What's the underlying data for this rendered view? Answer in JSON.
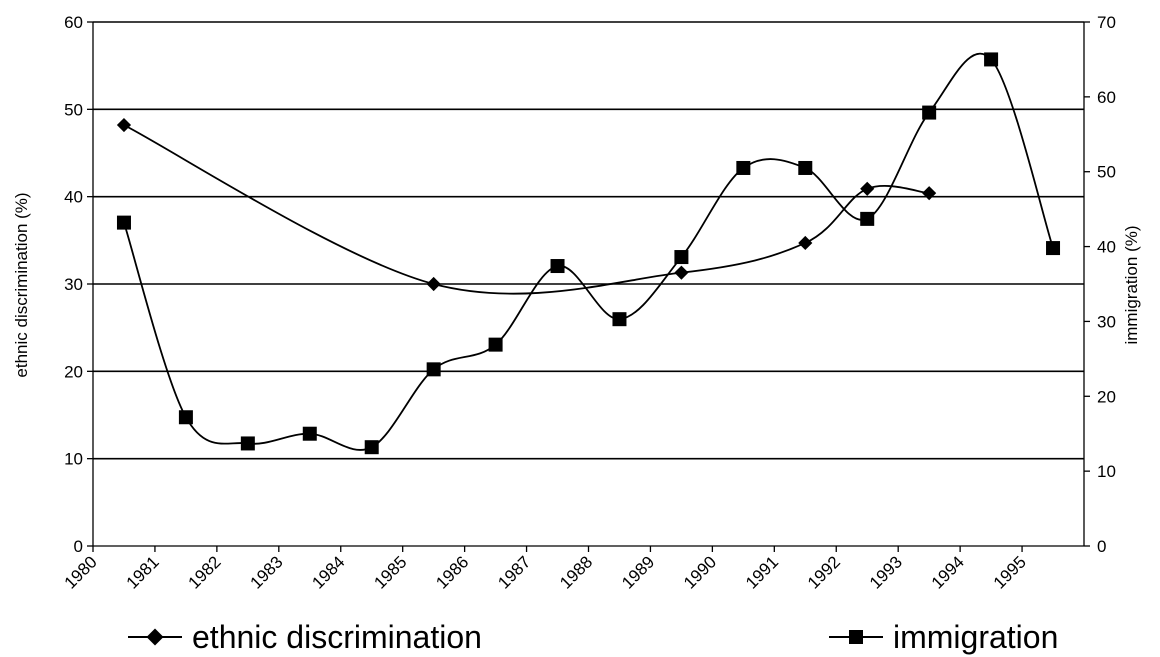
{
  "chart_data": {
    "type": "line",
    "x": [
      1980.5,
      1981.5,
      1982.5,
      1983.5,
      1984.5,
      1985.5,
      1986.5,
      1987.5,
      1988.5,
      1989.5,
      1990.5,
      1991.5,
      1992.5,
      1993.5,
      1994.5,
      1995.5
    ],
    "x_ticks": [
      "1980",
      "1981",
      "1982",
      "1983",
      "1984",
      "1985",
      "1986",
      "1987",
      "1988",
      "1989",
      "1990",
      "1991",
      "1992",
      "1993",
      "1994",
      "1995"
    ],
    "xlim": [
      1980,
      1996
    ],
    "ylabel": "ethnic discrimination (%)",
    "ylim": [
      0,
      60
    ],
    "y_ticks": [
      "0",
      "10",
      "20",
      "30",
      "40",
      "50",
      "60"
    ],
    "y2label": "immigration (%)",
    "y2lim": [
      0,
      70
    ],
    "y2_ticks": [
      "0",
      "10",
      "20",
      "30",
      "40",
      "50",
      "60",
      "70"
    ],
    "grid": "horizontal",
    "legend_position": "bottom",
    "series": [
      {
        "name": "ethnic discrimination",
        "axis": "left",
        "marker": "diamond",
        "color": "#000000",
        "points": [
          {
            "x": 1980.5,
            "y": 48.2
          },
          {
            "x": 1985.5,
            "y": 30.0
          },
          {
            "x": 1989.5,
            "y": 31.3
          },
          {
            "x": 1991.5,
            "y": 34.7
          },
          {
            "x": 1992.5,
            "y": 40.9
          },
          {
            "x": 1993.5,
            "y": 40.4
          }
        ]
      },
      {
        "name": "immigration",
        "axis": "right",
        "marker": "square",
        "color": "#000000",
        "points": [
          {
            "x": 1980.5,
            "y": 43.2
          },
          {
            "x": 1981.5,
            "y": 17.2
          },
          {
            "x": 1982.5,
            "y": 13.7
          },
          {
            "x": 1983.5,
            "y": 15.0
          },
          {
            "x": 1984.5,
            "y": 13.2
          },
          {
            "x": 1985.5,
            "y": 23.6
          },
          {
            "x": 1986.5,
            "y": 26.9
          },
          {
            "x": 1987.5,
            "y": 37.4
          },
          {
            "x": 1988.5,
            "y": 30.3
          },
          {
            "x": 1989.5,
            "y": 38.6
          },
          {
            "x": 1990.5,
            "y": 50.5
          },
          {
            "x": 1991.5,
            "y": 50.5
          },
          {
            "x": 1992.5,
            "y": 43.7
          },
          {
            "x": 1993.5,
            "y": 57.9
          },
          {
            "x": 1994.5,
            "y": 65.0
          },
          {
            "x": 1995.5,
            "y": 39.8
          }
        ]
      }
    ]
  }
}
